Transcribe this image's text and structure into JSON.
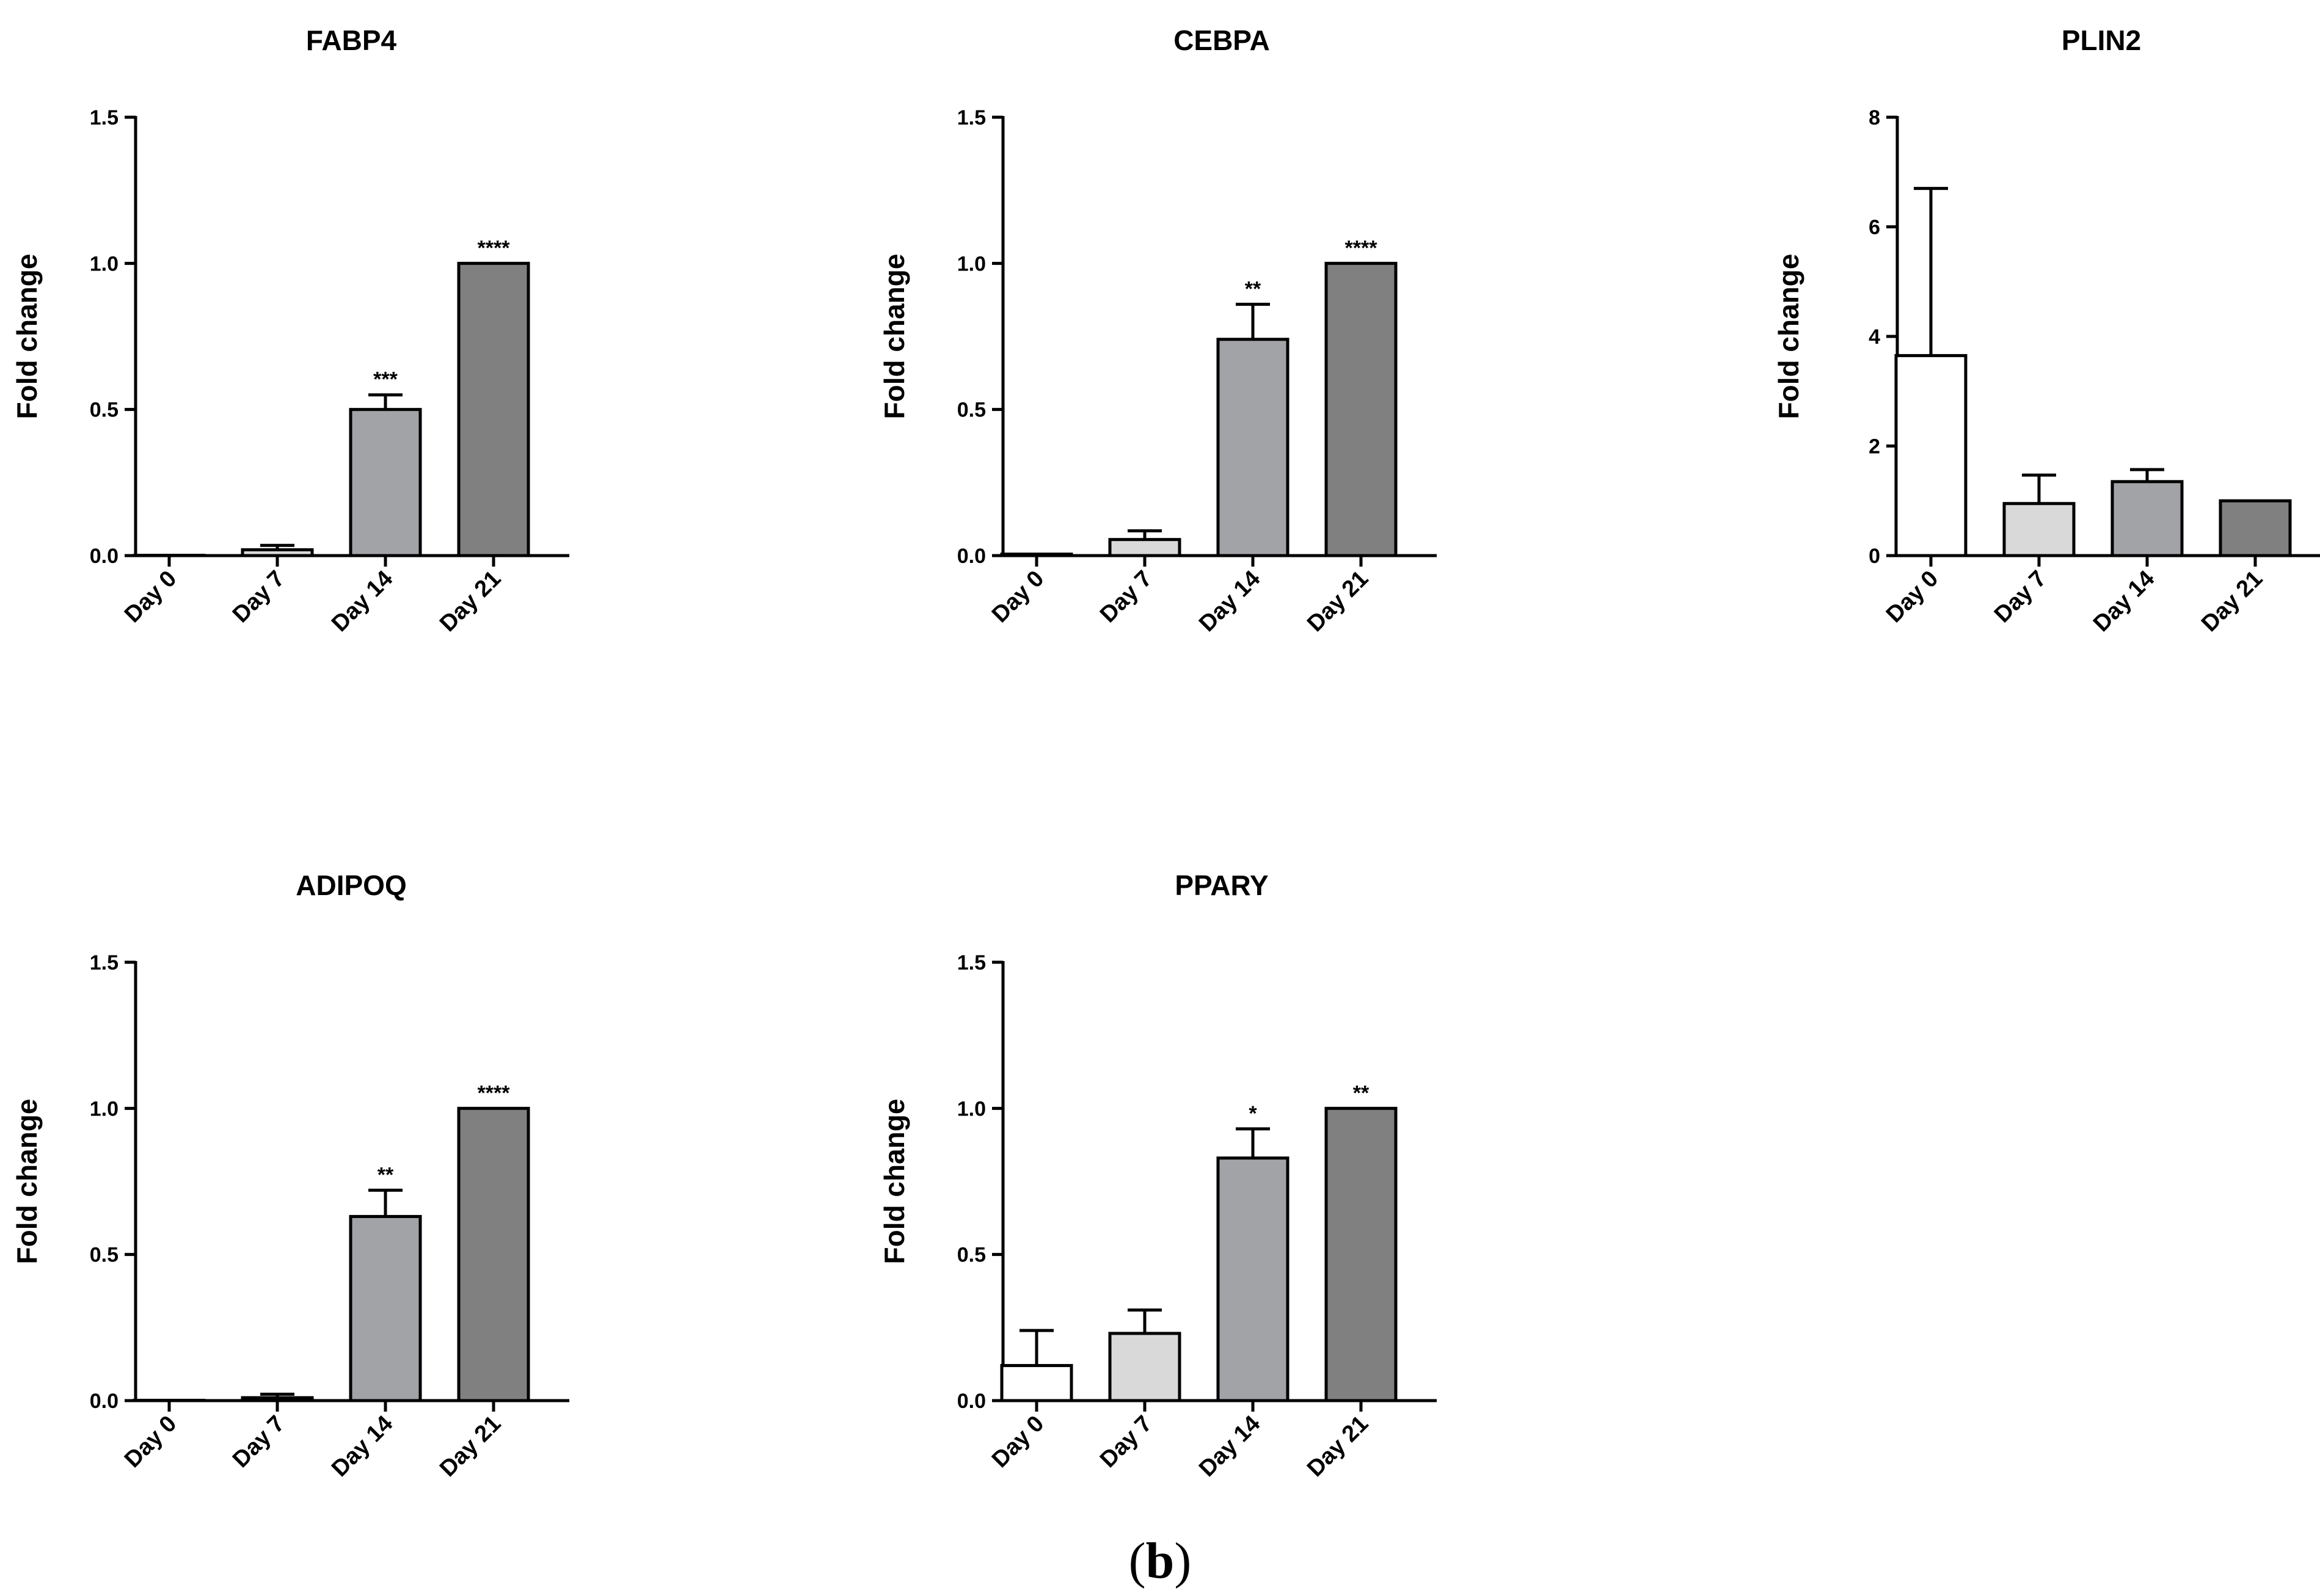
{
  "chart_data": [
    {
      "type": "bar",
      "title": "FABP4",
      "xlabel": "",
      "ylabel": "Fold change",
      "categories": [
        "Day 0",
        "Day 7",
        "Day 14",
        "Day 21"
      ],
      "values": [
        0.0,
        0.02,
        0.5,
        1.0
      ],
      "errors": [
        0.0,
        0.015,
        0.05,
        0.0
      ],
      "significance": [
        "",
        "",
        "***",
        "****"
      ],
      "ylim": [
        0,
        1.5
      ],
      "yticks": [
        "0.0",
        "0.5",
        "1.0",
        "1.5"
      ],
      "ytick_values": [
        0,
        0.5,
        1.0,
        1.5
      ],
      "grid": false
    },
    {
      "type": "bar",
      "title": "CEBPA",
      "xlabel": "",
      "ylabel": "Fold change",
      "categories": [
        "Day 0",
        "Day 7",
        "Day 14",
        "Day 21"
      ],
      "values": [
        0.005,
        0.055,
        0.74,
        1.0
      ],
      "errors": [
        0.0,
        0.03,
        0.12,
        0.0
      ],
      "significance": [
        "",
        "",
        "**",
        "****"
      ],
      "ylim": [
        0,
        1.5
      ],
      "yticks": [
        "0.0",
        "0.5",
        "1.0",
        "1.5"
      ],
      "ytick_values": [
        0,
        0.5,
        1.0,
        1.5
      ],
      "grid": false
    },
    {
      "type": "bar",
      "title": "PLIN2",
      "xlabel": "",
      "ylabel": "Fold change",
      "categories": [
        "Day 0",
        "Day 7",
        "Day 14",
        "Day 21"
      ],
      "values": [
        3.65,
        0.95,
        1.35,
        1.0
      ],
      "errors": [
        3.05,
        0.52,
        0.22,
        0.0
      ],
      "significance": [
        "",
        "",
        "",
        ""
      ],
      "ylim": [
        0,
        8
      ],
      "yticks": [
        "0",
        "2",
        "4",
        "6",
        "8"
      ],
      "ytick_values": [
        0,
        2,
        4,
        6,
        8
      ],
      "grid": false
    },
    {
      "type": "bar",
      "title": "ADIPOQ",
      "xlabel": "",
      "ylabel": "Fold change",
      "categories": [
        "Day 0",
        "Day 7",
        "Day 14",
        "Day 21"
      ],
      "values": [
        0.0,
        0.01,
        0.63,
        1.0
      ],
      "errors": [
        0.0,
        0.012,
        0.09,
        0.0
      ],
      "significance": [
        "",
        "",
        "**",
        "****"
      ],
      "ylim": [
        0,
        1.5
      ],
      "yticks": [
        "0.0",
        "0.5",
        "1.0",
        "1.5"
      ],
      "ytick_values": [
        0,
        0.5,
        1.0,
        1.5
      ],
      "grid": false
    },
    {
      "type": "bar",
      "title": "PPARY",
      "xlabel": "",
      "ylabel": "Fold change",
      "categories": [
        "Day 0",
        "Day 7",
        "Day 14",
        "Day 21"
      ],
      "values": [
        0.12,
        0.23,
        0.83,
        1.0
      ],
      "errors": [
        0.12,
        0.08,
        0.1,
        0.0
      ],
      "significance": [
        "",
        "",
        "*",
        "**"
      ],
      "ylim": [
        0,
        1.5
      ],
      "yticks": [
        "0.0",
        "0.5",
        "1.0",
        "1.5"
      ],
      "ytick_values": [
        0,
        0.5,
        1.0,
        1.5
      ],
      "grid": false
    }
  ],
  "colors": {
    "day_0": "#ffffff",
    "day_7": "#d9d9d9",
    "day_14": "#a2a3a7",
    "day_21": "#808080",
    "axis": "#000000"
  },
  "caption": {
    "open": "(",
    "letter": "b",
    "close": ")"
  }
}
